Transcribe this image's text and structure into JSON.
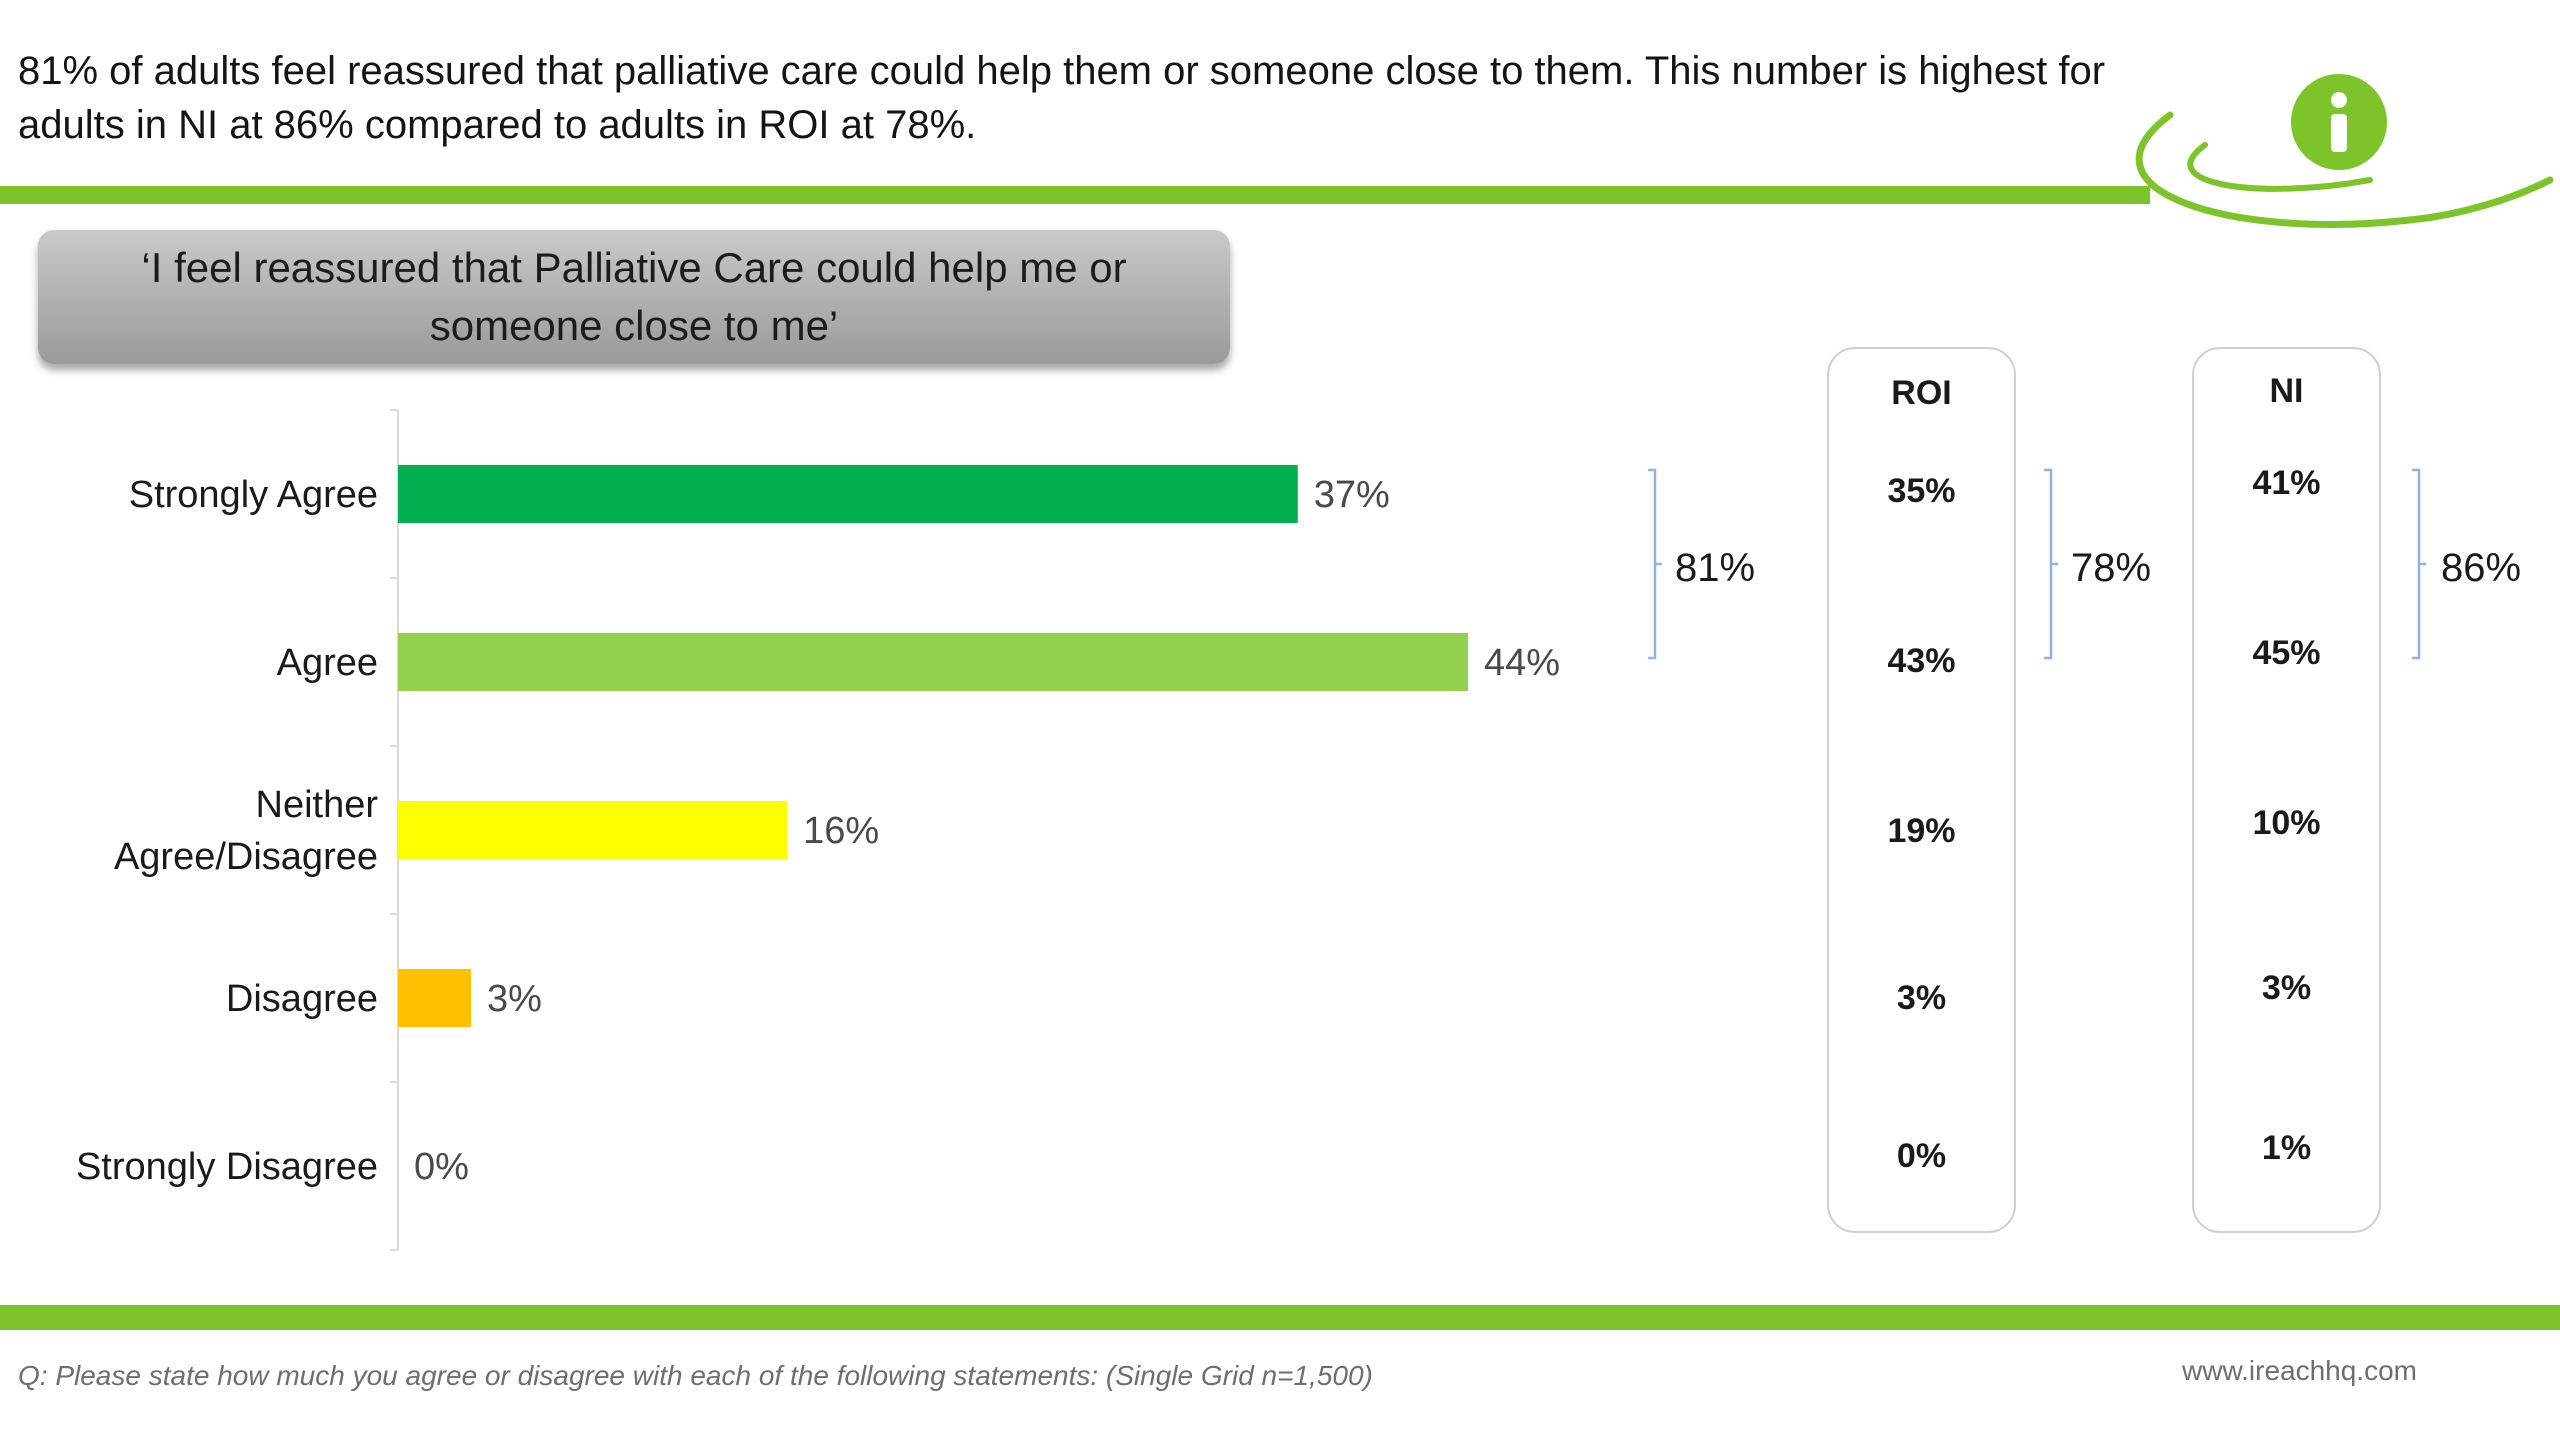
{
  "headline": "81% of adults feel reassured that palliative care could help them or someone close to them. This number is highest for adults in NI at 86% compared to adults in ROI at 78%.",
  "banner": "‘I feel reassured that Palliative Care could help me or someone close to me’",
  "chart_data": {
    "type": "bar",
    "orientation": "horizontal",
    "categories": [
      "Strongly Agree",
      "Agree",
      "Neither\nAgree/Disagree",
      "Disagree",
      "Strongly Disagree"
    ],
    "values": [
      37,
      44,
      16,
      3,
      0
    ],
    "value_labels": [
      "37%",
      "44%",
      "16%",
      "3%",
      "0%"
    ],
    "colors": [
      "#00b050",
      "#92d050",
      "#ffff00",
      "#ffc000",
      "#a6a6a6"
    ],
    "xlim": [
      0,
      50
    ],
    "grid": false,
    "net": {
      "label": "81%",
      "covers": [
        "Strongly Agree",
        "Agree"
      ]
    }
  },
  "panels": [
    {
      "title": "ROI",
      "values": [
        "35%",
        "43%",
        "19%",
        "3%",
        "0%"
      ],
      "net": "78%"
    },
    {
      "title": "NI",
      "values": [
        "41%",
        "45%",
        "10%",
        "3%",
        "1%"
      ],
      "net": "86%"
    }
  ],
  "footer": {
    "question": "Q: Please state how much you agree or disagree with each of the following statements: (Single Grid n=1,500)",
    "url": "www.ireachhq.com"
  },
  "brand": {
    "accent": "#7dc42a",
    "logo_icon": "info-icon"
  }
}
